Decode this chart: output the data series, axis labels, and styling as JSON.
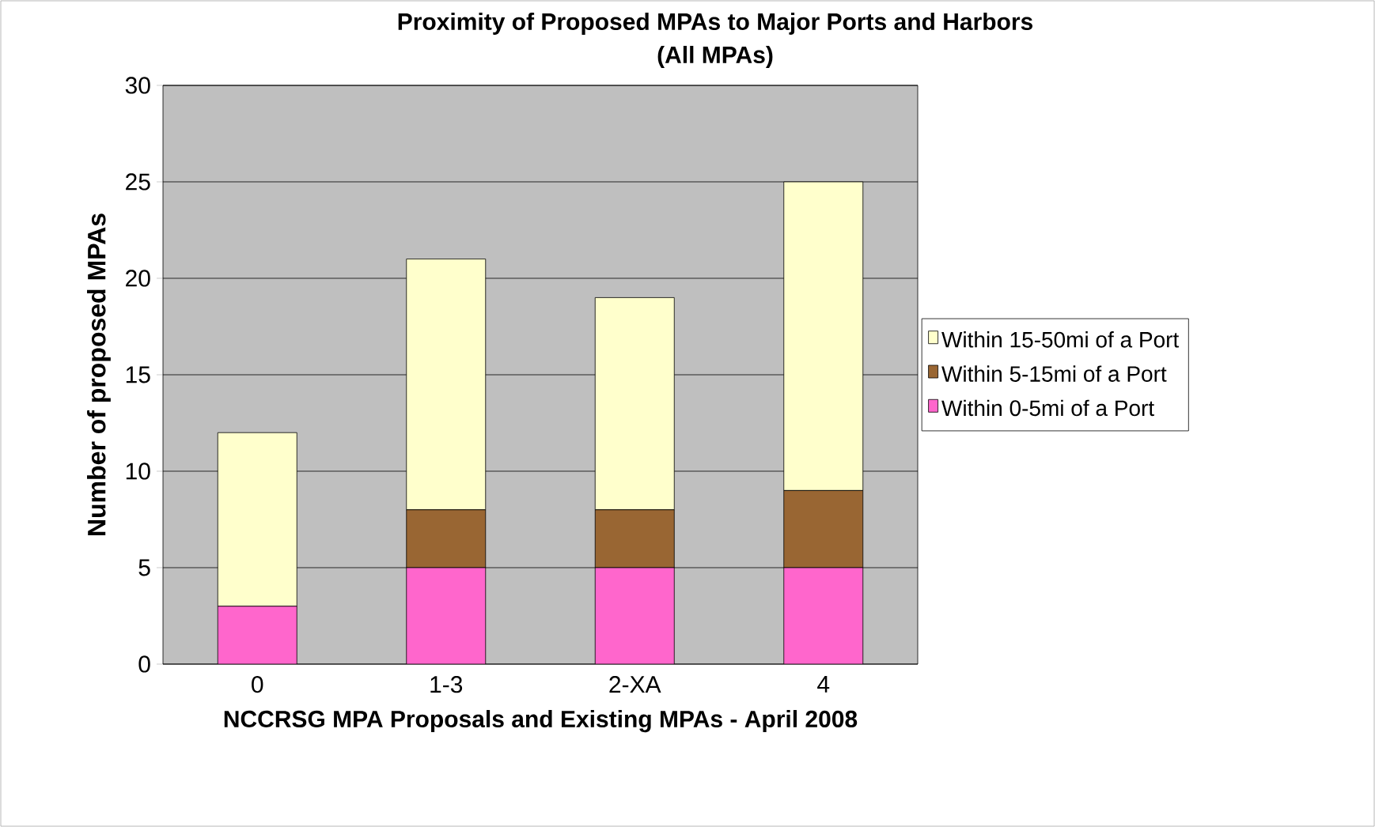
{
  "chart_data": {
    "type": "bar",
    "title": "Proximity of Proposed MPAs to Major Ports and Harbors",
    "subtitle": "(All MPAs)",
    "xlabel": "NCCRSG MPA Proposals and Existing MPAs - April 2008",
    "ylabel": "Number of proposed MPAs",
    "categories": [
      "0",
      "1-3",
      "2-XA",
      "4"
    ],
    "stacked": true,
    "series": [
      {
        "name": "Within 0-5mi of a Port",
        "color": "#ff66cc",
        "values": [
          3,
          5,
          5,
          5
        ]
      },
      {
        "name": "Within 5-15mi of a Port",
        "color": "#996633",
        "values": [
          0,
          3,
          3,
          4
        ]
      },
      {
        "name": "Within 15-50mi of a Port",
        "color": "#ffffcc",
        "values": [
          9,
          13,
          11,
          16
        ]
      }
    ],
    "ylim": [
      0,
      30
    ],
    "yticks": [
      0,
      5,
      10,
      15,
      20,
      25,
      30
    ],
    "grid": "y",
    "legend": "right"
  }
}
